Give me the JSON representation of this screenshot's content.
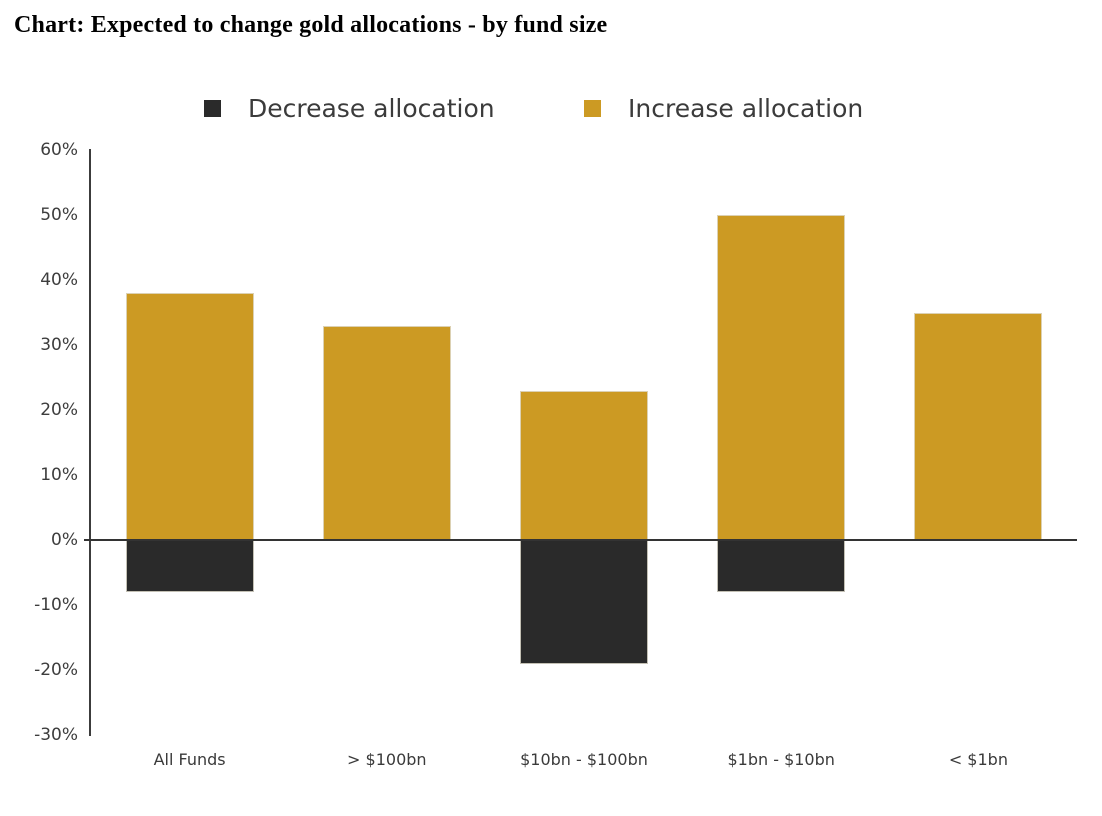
{
  "page": {
    "title": "Chart: Expected to change gold allocations - by fund size"
  },
  "chart_data": {
    "type": "bar",
    "title": "Chart: Expected to change gold allocations - by fund size",
    "categories": [
      "All Funds",
      "> $100bn",
      "$10bn - $100bn",
      "$1bn - $10bn",
      "< $1bn"
    ],
    "series": [
      {
        "name": "Decrease allocation",
        "color": "#2a2a2a",
        "values": [
          -8,
          0,
          -19,
          -8,
          0
        ]
      },
      {
        "name": "Increase allocation",
        "color": "#cc9a23",
        "values": [
          38,
          33,
          23,
          50,
          35
        ]
      }
    ],
    "xlabel": "",
    "ylabel": "",
    "ylim": [
      -30,
      60
    ],
    "ytick_step": 10,
    "ytick_format": "percent",
    "legend_position": "top",
    "grid": false,
    "zero_line": true
  }
}
